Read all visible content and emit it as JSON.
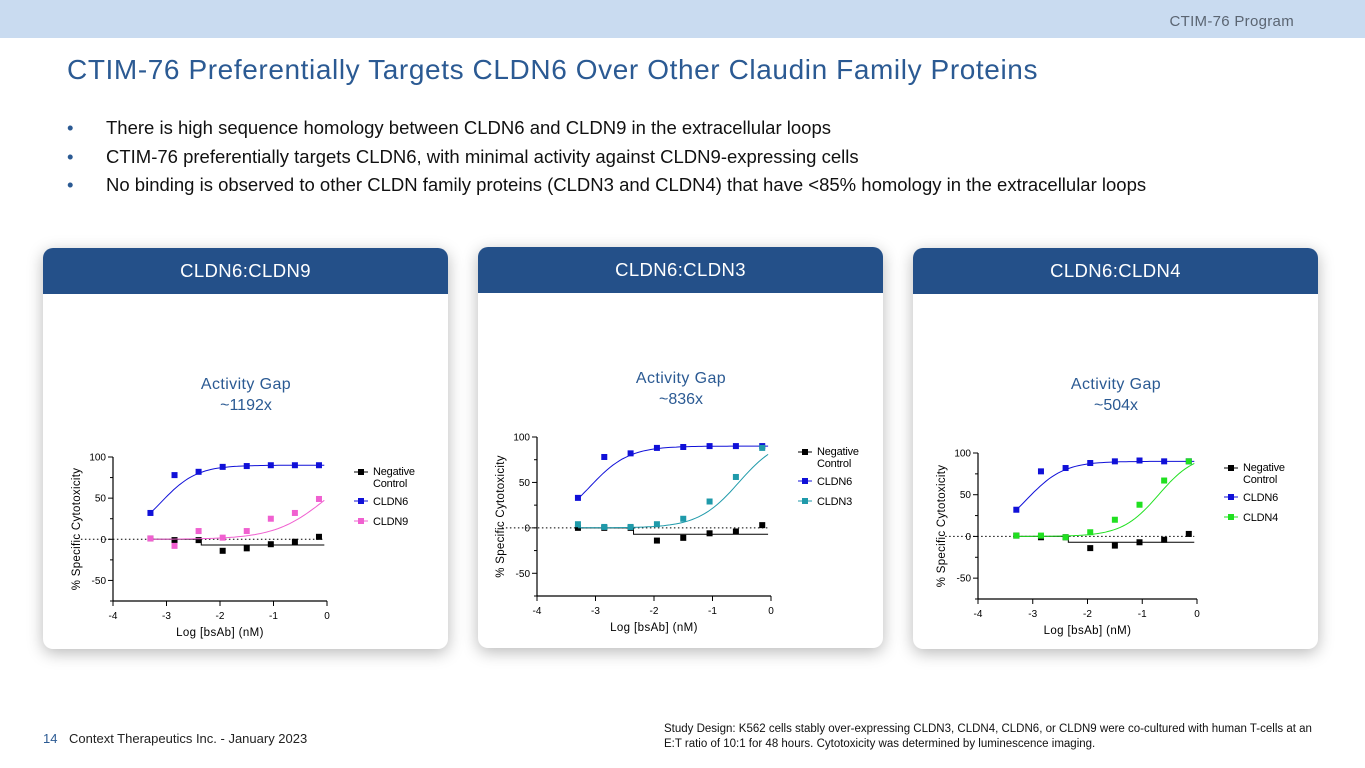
{
  "header": {
    "program": "CTIM-76 Program"
  },
  "title": "CTIM-76 Preferentially Targets CLDN6 Over Other Claudin Family Proteins",
  "bullets": [
    "There is high sequence homology between CLDN6 and CLDN9 in the extracellular loops",
    "CTIM-76 preferentially targets CLDN6, with minimal activity against CLDN9-expressing cells",
    "No binding is observed to other CLDN family proteins (CLDN3 and CLDN4) that have <85% homology in the extracellular loops"
  ],
  "bullet_glyph": "•",
  "cards": [
    {
      "header": "CLDN6:CLDN9",
      "gap_title": "Activity Gap",
      "gap_value": "~1192x"
    },
    {
      "header": "CLDN6:CLDN3",
      "gap_title": "Activity Gap",
      "gap_value": "~836x"
    },
    {
      "header": "CLDN6:CLDN4",
      "gap_title": "Activity Gap",
      "gap_value": "~504x"
    }
  ],
  "footer": {
    "page_number": "14",
    "company": "Context Therapeutics Inc. - January 2023",
    "study_design": "Study Design: K562 cells stably over-expressing CLDN3, CLDN4, CLDN6, or CLDN9 were co-cultured with human T-cells at an E:T ratio of 10:1 for 48 hours. Cytotoxicity was determined by luminescence imaging."
  },
  "colors": {
    "accent": "#2b5a93",
    "card_header": "#245089",
    "top_bar": "#c9dbf0",
    "negative_control": "#000000",
    "cldn6": "#1010d8",
    "cldn9": "#f060d0",
    "cldn3": "#1f9aaa",
    "cldn4": "#20e020"
  },
  "chart_data": [
    {
      "type": "scatter",
      "title": "CLDN6:CLDN9",
      "xlabel": "Log [bsAb] (nM)",
      "ylabel": "% Specific Cytotoxicity",
      "xlim": [
        -4,
        0
      ],
      "ylim": [
        -75,
        100
      ],
      "xticks": [
        "-4",
        "-3",
        "-2",
        "-1",
        "0"
      ],
      "yticks": [
        "100",
        "50",
        "0",
        "-50"
      ],
      "legend_position": "right",
      "series": [
        {
          "name": "Negative Control",
          "legend_label": [
            "Negative",
            "Control"
          ],
          "color": "#000000",
          "marker": "square",
          "x": [
            -3.3,
            -2.85,
            -2.4,
            -1.95,
            -1.5,
            -1.05,
            -0.6,
            -0.15
          ],
          "y": [
            1,
            -1,
            -1,
            -14,
            -11,
            -6,
            -3,
            3
          ],
          "fit": "flat_negative"
        },
        {
          "name": "CLDN6",
          "legend_label": [
            "CLDN6"
          ],
          "color": "#1010d8",
          "marker": "square",
          "x": [
            -3.3,
            -2.85,
            -2.4,
            -1.95,
            -1.5,
            -1.05,
            -0.6,
            -0.15
          ],
          "y": [
            32,
            78,
            82,
            88,
            89,
            90,
            90,
            90
          ],
          "fit": {
            "bottom": 0,
            "top": 90,
            "ec50": -3.1,
            "hill": 1.3
          }
        },
        {
          "name": "CLDN9",
          "legend_label": [
            "CLDN9"
          ],
          "color": "#f060d0",
          "marker": "square",
          "x": [
            -3.3,
            -2.85,
            -2.4,
            -1.95,
            -1.5,
            -1.05,
            -0.6,
            -0.15
          ],
          "y": [
            1,
            -8,
            10,
            2,
            10,
            25,
            32,
            49
          ],
          "fit": {
            "bottom": 0,
            "top": 100,
            "ec50": 0,
            "hill": 0.9
          }
        }
      ]
    },
    {
      "type": "scatter",
      "title": "CLDN6:CLDN3",
      "xlabel": "Log [bsAb] (nM)",
      "ylabel": "% Specific Cytotoxicity",
      "xlim": [
        -4,
        0
      ],
      "ylim": [
        -75,
        100
      ],
      "xticks": [
        "-4",
        "-3",
        "-2",
        "-1",
        "0"
      ],
      "yticks": [
        "100",
        "50",
        "0",
        "-50"
      ],
      "legend_position": "right",
      "series": [
        {
          "name": "Negative Control",
          "legend_label": [
            "Negative",
            "Control"
          ],
          "color": "#000000",
          "marker": "square",
          "x": [
            -3.3,
            -2.85,
            -2.4,
            -1.95,
            -1.5,
            -1.05,
            -0.6,
            -0.15
          ],
          "y": [
            0,
            0,
            0,
            -14,
            -11,
            -6,
            -4,
            3
          ],
          "fit": "flat_negative"
        },
        {
          "name": "CLDN6",
          "legend_label": [
            "CLDN6"
          ],
          "color": "#1010d8",
          "marker": "square",
          "x": [
            -3.3,
            -2.85,
            -2.4,
            -1.95,
            -1.5,
            -1.05,
            -0.6,
            -0.15
          ],
          "y": [
            33,
            78,
            82,
            88,
            89,
            90,
            90,
            90
          ],
          "fit": {
            "bottom": 0,
            "top": 90,
            "ec50": -3.1,
            "hill": 1.3
          }
        },
        {
          "name": "CLDN3",
          "legend_label": [
            "CLDN3"
          ],
          "color": "#1f9aaa",
          "marker": "square",
          "x": [
            -3.3,
            -2.85,
            -2.4,
            -1.95,
            -1.5,
            -1.05,
            -0.6,
            -0.15
          ],
          "y": [
            4,
            1,
            1,
            4,
            10,
            29,
            56,
            88
          ],
          "fit": {
            "bottom": 0,
            "top": 100,
            "ec50": -0.55,
            "hill": 1.25
          }
        }
      ]
    },
    {
      "type": "scatter",
      "title": "CLDN6:CLDN4",
      "xlabel": "Log [bsAb] (nM)",
      "ylabel": "% Specific Cytotoxicity",
      "xlim": [
        -4,
        0
      ],
      "ylim": [
        -75,
        100
      ],
      "xticks": [
        "-4",
        "-3",
        "-2",
        "-1",
        "0"
      ],
      "yticks": [
        "100",
        "50",
        "0",
        "-50"
      ],
      "legend_position": "right",
      "series": [
        {
          "name": "Negative Control",
          "legend_label": [
            "Negative",
            "Control"
          ],
          "color": "#000000",
          "marker": "square",
          "x": [
            -3.3,
            -2.85,
            -2.4,
            -1.95,
            -1.5,
            -1.05,
            -0.6,
            -0.15
          ],
          "y": [
            1,
            -1,
            -1,
            -14,
            -11,
            -7,
            -4,
            3
          ],
          "fit": "flat_negative"
        },
        {
          "name": "CLDN6",
          "legend_label": [
            "CLDN6"
          ],
          "color": "#1010d8",
          "marker": "square",
          "x": [
            -3.3,
            -2.85,
            -2.4,
            -1.95,
            -1.5,
            -1.05,
            -0.6,
            -0.15
          ],
          "y": [
            32,
            78,
            82,
            88,
            90,
            91,
            90,
            90
          ],
          "fit": {
            "bottom": 0,
            "top": 90,
            "ec50": -3.1,
            "hill": 1.3
          }
        },
        {
          "name": "CLDN4",
          "legend_label": [
            "CLDN4"
          ],
          "color": "#20e020",
          "marker": "square",
          "x": [
            -3.3,
            -2.85,
            -2.4,
            -1.95,
            -1.5,
            -1.05,
            -0.6,
            -0.15
          ],
          "y": [
            1,
            1,
            -1,
            5,
            20,
            38,
            67,
            90
          ],
          "fit": {
            "bottom": 0,
            "top": 100,
            "ec50": -0.7,
            "hill": 1.3
          }
        }
      ]
    }
  ]
}
